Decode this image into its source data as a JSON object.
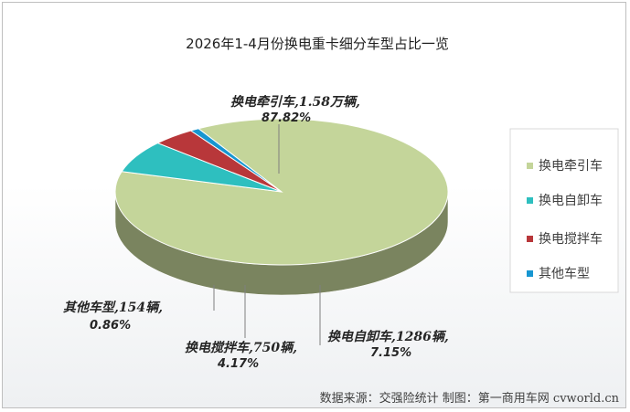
{
  "chart_data": {
    "type": "pie",
    "title": "2026年1-4月份换电重卡细分车型占比一览",
    "slices": [
      {
        "name": "换电牵引车",
        "value": 87.82,
        "label": "换电牵引车,1.58万辆,",
        "pct": "87.82%",
        "color": "#c4d59a"
      },
      {
        "name": "换电自卸车",
        "value": 7.15,
        "label": "换电自卸车,1286辆,",
        "pct": "7.15%",
        "color": "#2ebfbf"
      },
      {
        "name": "换电搅拌车",
        "value": 4.17,
        "label": "换电搅拌车,750辆,",
        "pct": "4.17%",
        "color": "#b8373a"
      },
      {
        "name": "其他车型",
        "value": 0.86,
        "label": "其他车型,154辆,",
        "pct": "0.86%",
        "color": "#1796d1"
      }
    ],
    "legend": [
      "换电牵引车",
      "换电自卸车",
      "换电搅拌车",
      "其他车型"
    ],
    "legend_position": "right"
  },
  "source": "数据来源：交强险统计  制图：第一商用车网 cvworld.cn"
}
